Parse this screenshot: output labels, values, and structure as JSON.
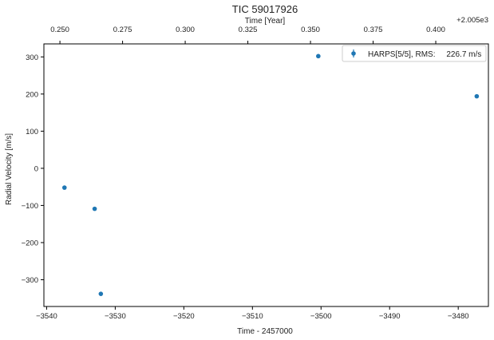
{
  "chart_data": {
    "type": "scatter",
    "title": "TIC 59017926",
    "xlabel": "Time - 2457000",
    "ylabel": "Radial Velocity [m/s]",
    "top_xlabel": "Time [Year]",
    "top_offset": "+2.005e3",
    "xlim": [
      -3540.4,
      -3475.6
    ],
    "ylim": [
      -372,
      335
    ],
    "x_ticks": [
      -3540,
      -3530,
      -3520,
      -3510,
      -3500,
      -3490,
      -3480
    ],
    "x_tick_labels": [
      "−3540",
      "−3530",
      "−3520",
      "−3510",
      "−3500",
      "−3490",
      "−3480"
    ],
    "y_ticks": [
      300,
      200,
      100,
      0,
      -100,
      -200,
      -300
    ],
    "y_tick_labels": [
      "300",
      "200",
      "100",
      "0",
      "−100",
      "−200",
      "−300"
    ],
    "top_ticks": [
      0.25,
      0.275,
      0.3,
      0.325,
      0.35,
      0.375,
      0.4
    ],
    "top_tick_labels": [
      "0.250",
      "0.275",
      "0.300",
      "0.325",
      "0.350",
      "0.375",
      "0.400"
    ],
    "series": [
      {
        "name": "HARPS[5/5], RMS:     226.7 m/s",
        "color": "#1f77b4",
        "x": [
          -3537.4,
          -3533.0,
          -3532.1,
          -3500.4,
          -3477.3
        ],
        "y": [
          -52,
          -109,
          -338,
          302,
          194
        ]
      }
    ],
    "legend": {
      "placement": "top-right",
      "text": "HARPS[5/5], RMS:     226.7 m/s"
    },
    "grid": false
  }
}
